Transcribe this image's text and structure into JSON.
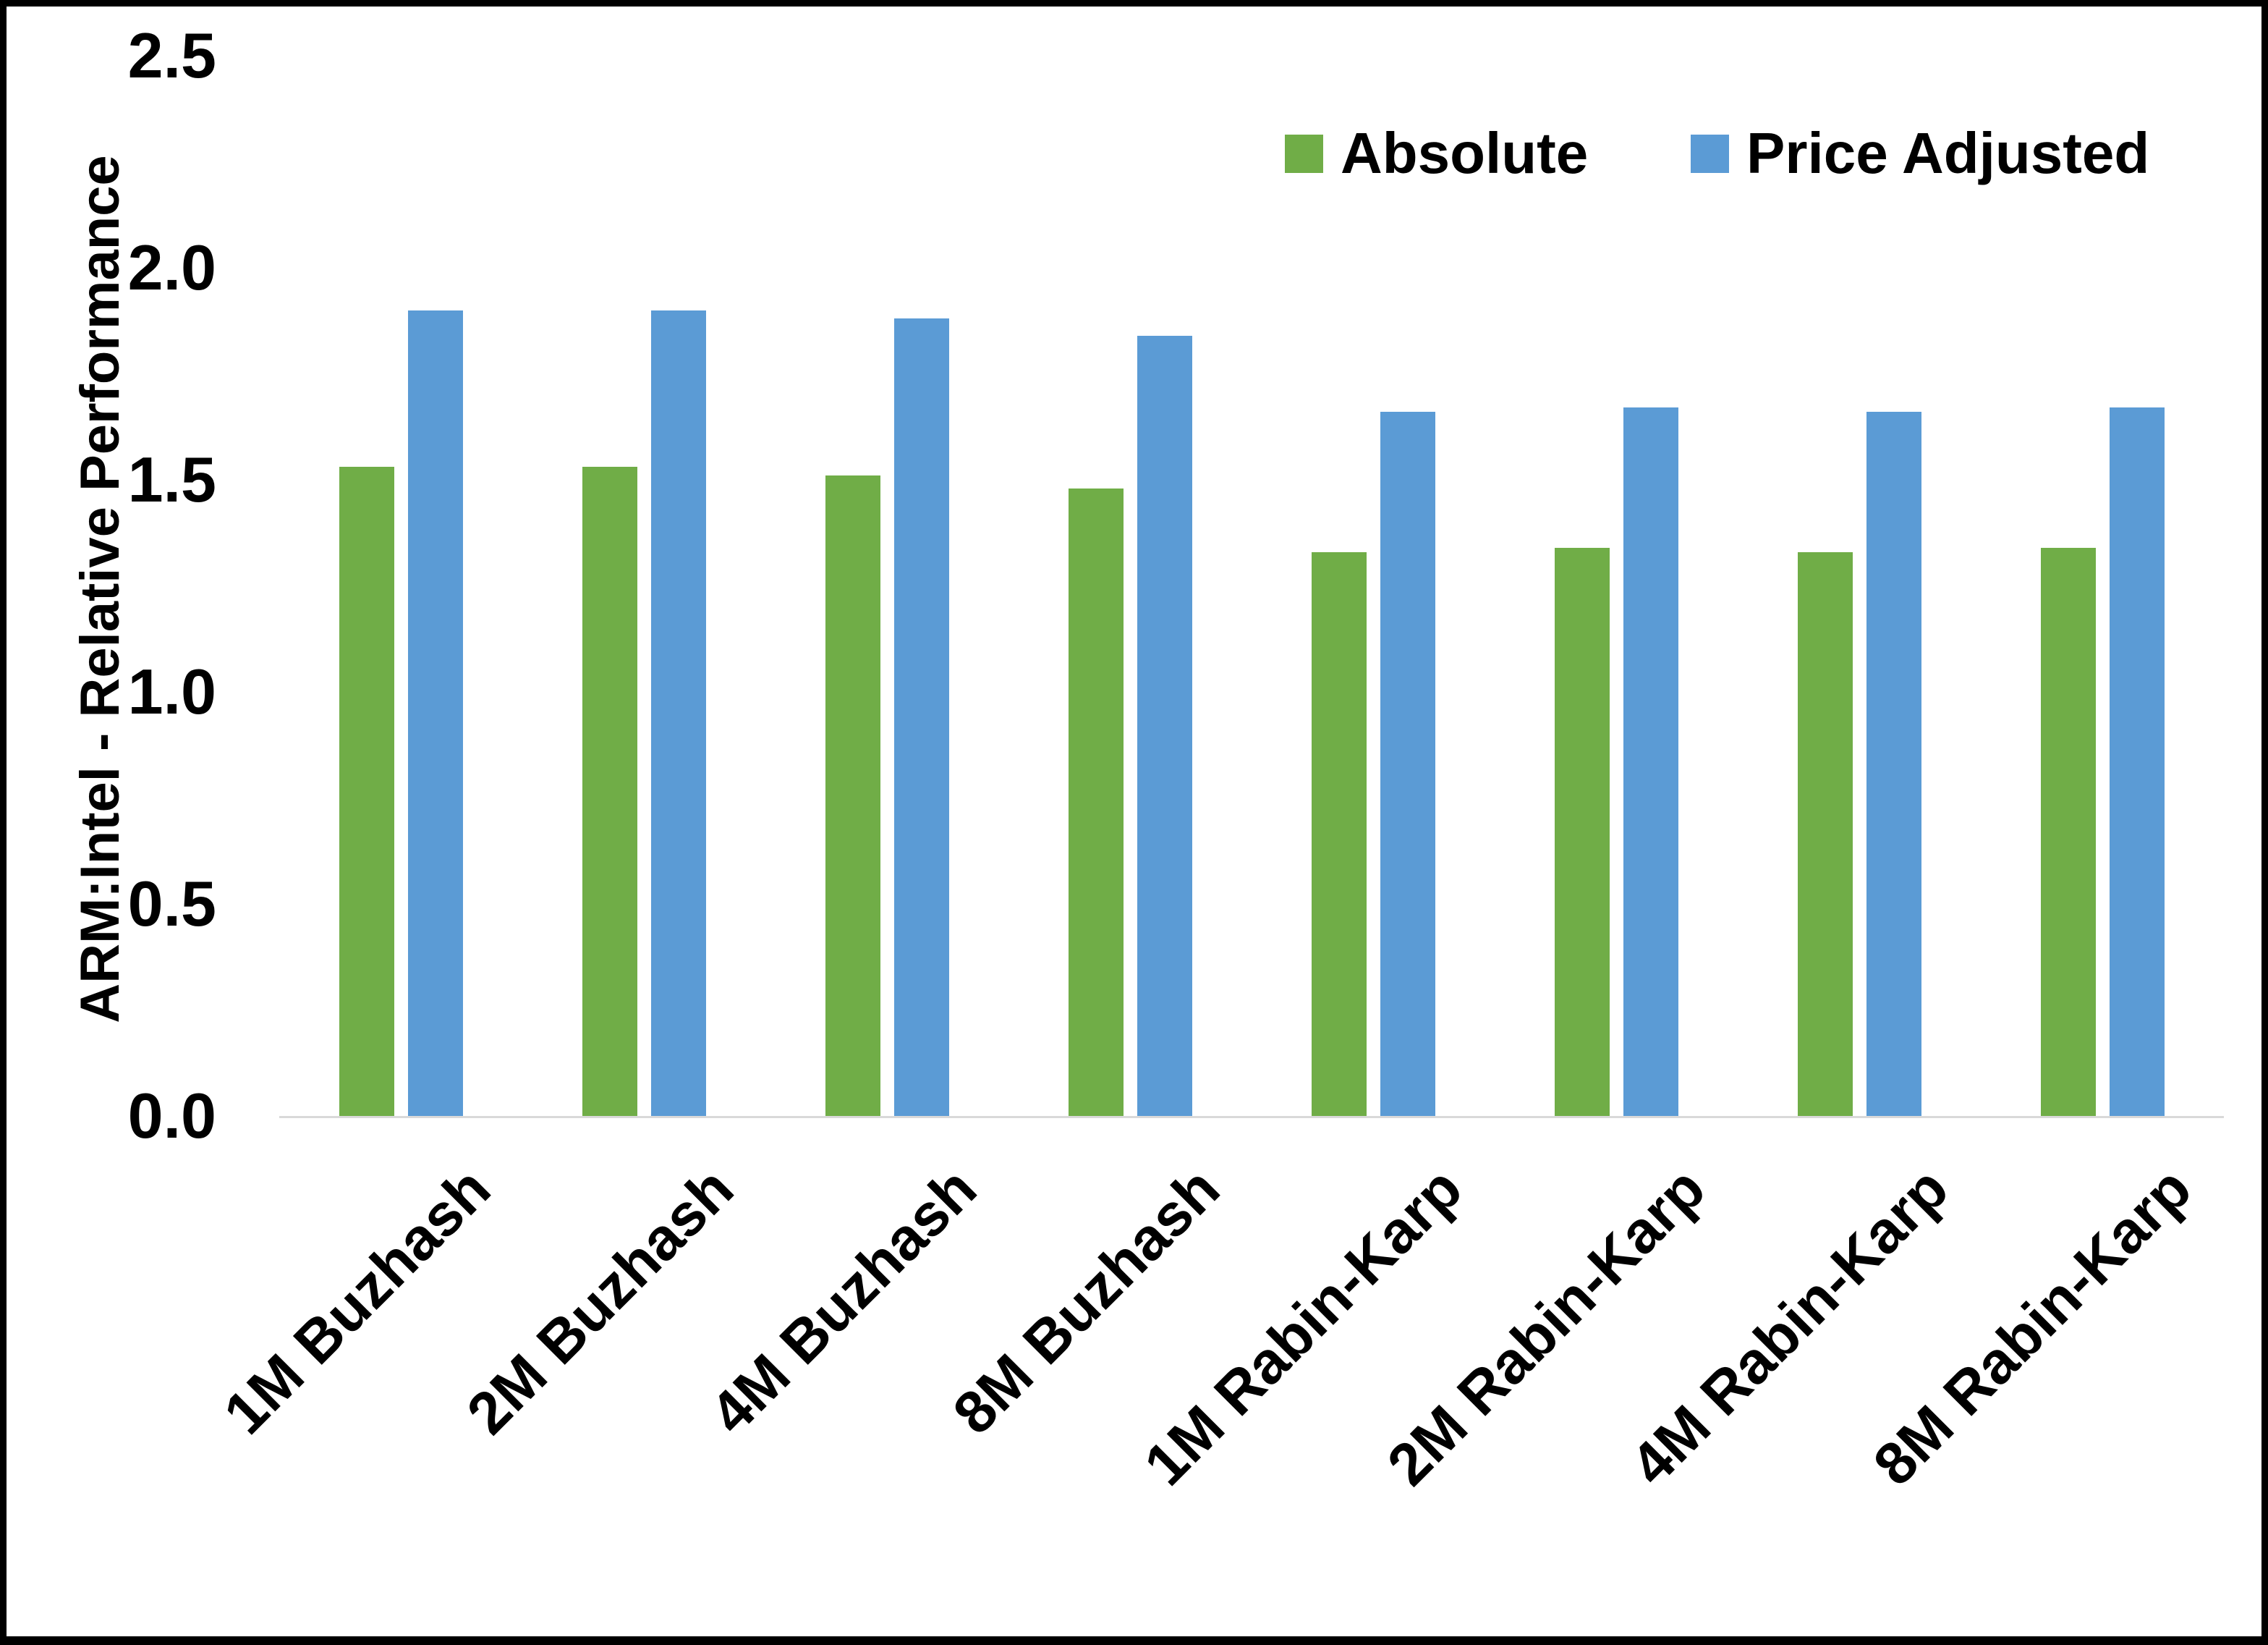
{
  "chart_data": {
    "type": "bar",
    "title": "",
    "categories": [
      "1M Buzhash",
      "2M Buzhash",
      "4M Buzhash",
      "8M Buzhash",
      "1M Rabin-Karp",
      "2M Rabin-Karp",
      "4M Rabin-Karp",
      "8M Rabin-Karp"
    ],
    "series": [
      {
        "name": "Absolute",
        "color": "#70AD47",
        "values": [
          1.53,
          1.53,
          1.51,
          1.48,
          1.33,
          1.34,
          1.33,
          1.34
        ]
      },
      {
        "name": "Price Adjusted",
        "color": "#5B9BD5",
        "values": [
          1.9,
          1.9,
          1.88,
          1.84,
          1.66,
          1.67,
          1.66,
          1.67
        ]
      }
    ],
    "xlabel": "",
    "ylabel": "ARM:Intel - Relative Performance",
    "ylim": [
      0,
      2.5
    ],
    "yticks": [
      2.5,
      2.0,
      1.5,
      1.0,
      0.5,
      0.0
    ],
    "grid": false,
    "legend_position": "top-right",
    "axis_line_color": "#D9D9D9",
    "frame_color": "#000000"
  }
}
